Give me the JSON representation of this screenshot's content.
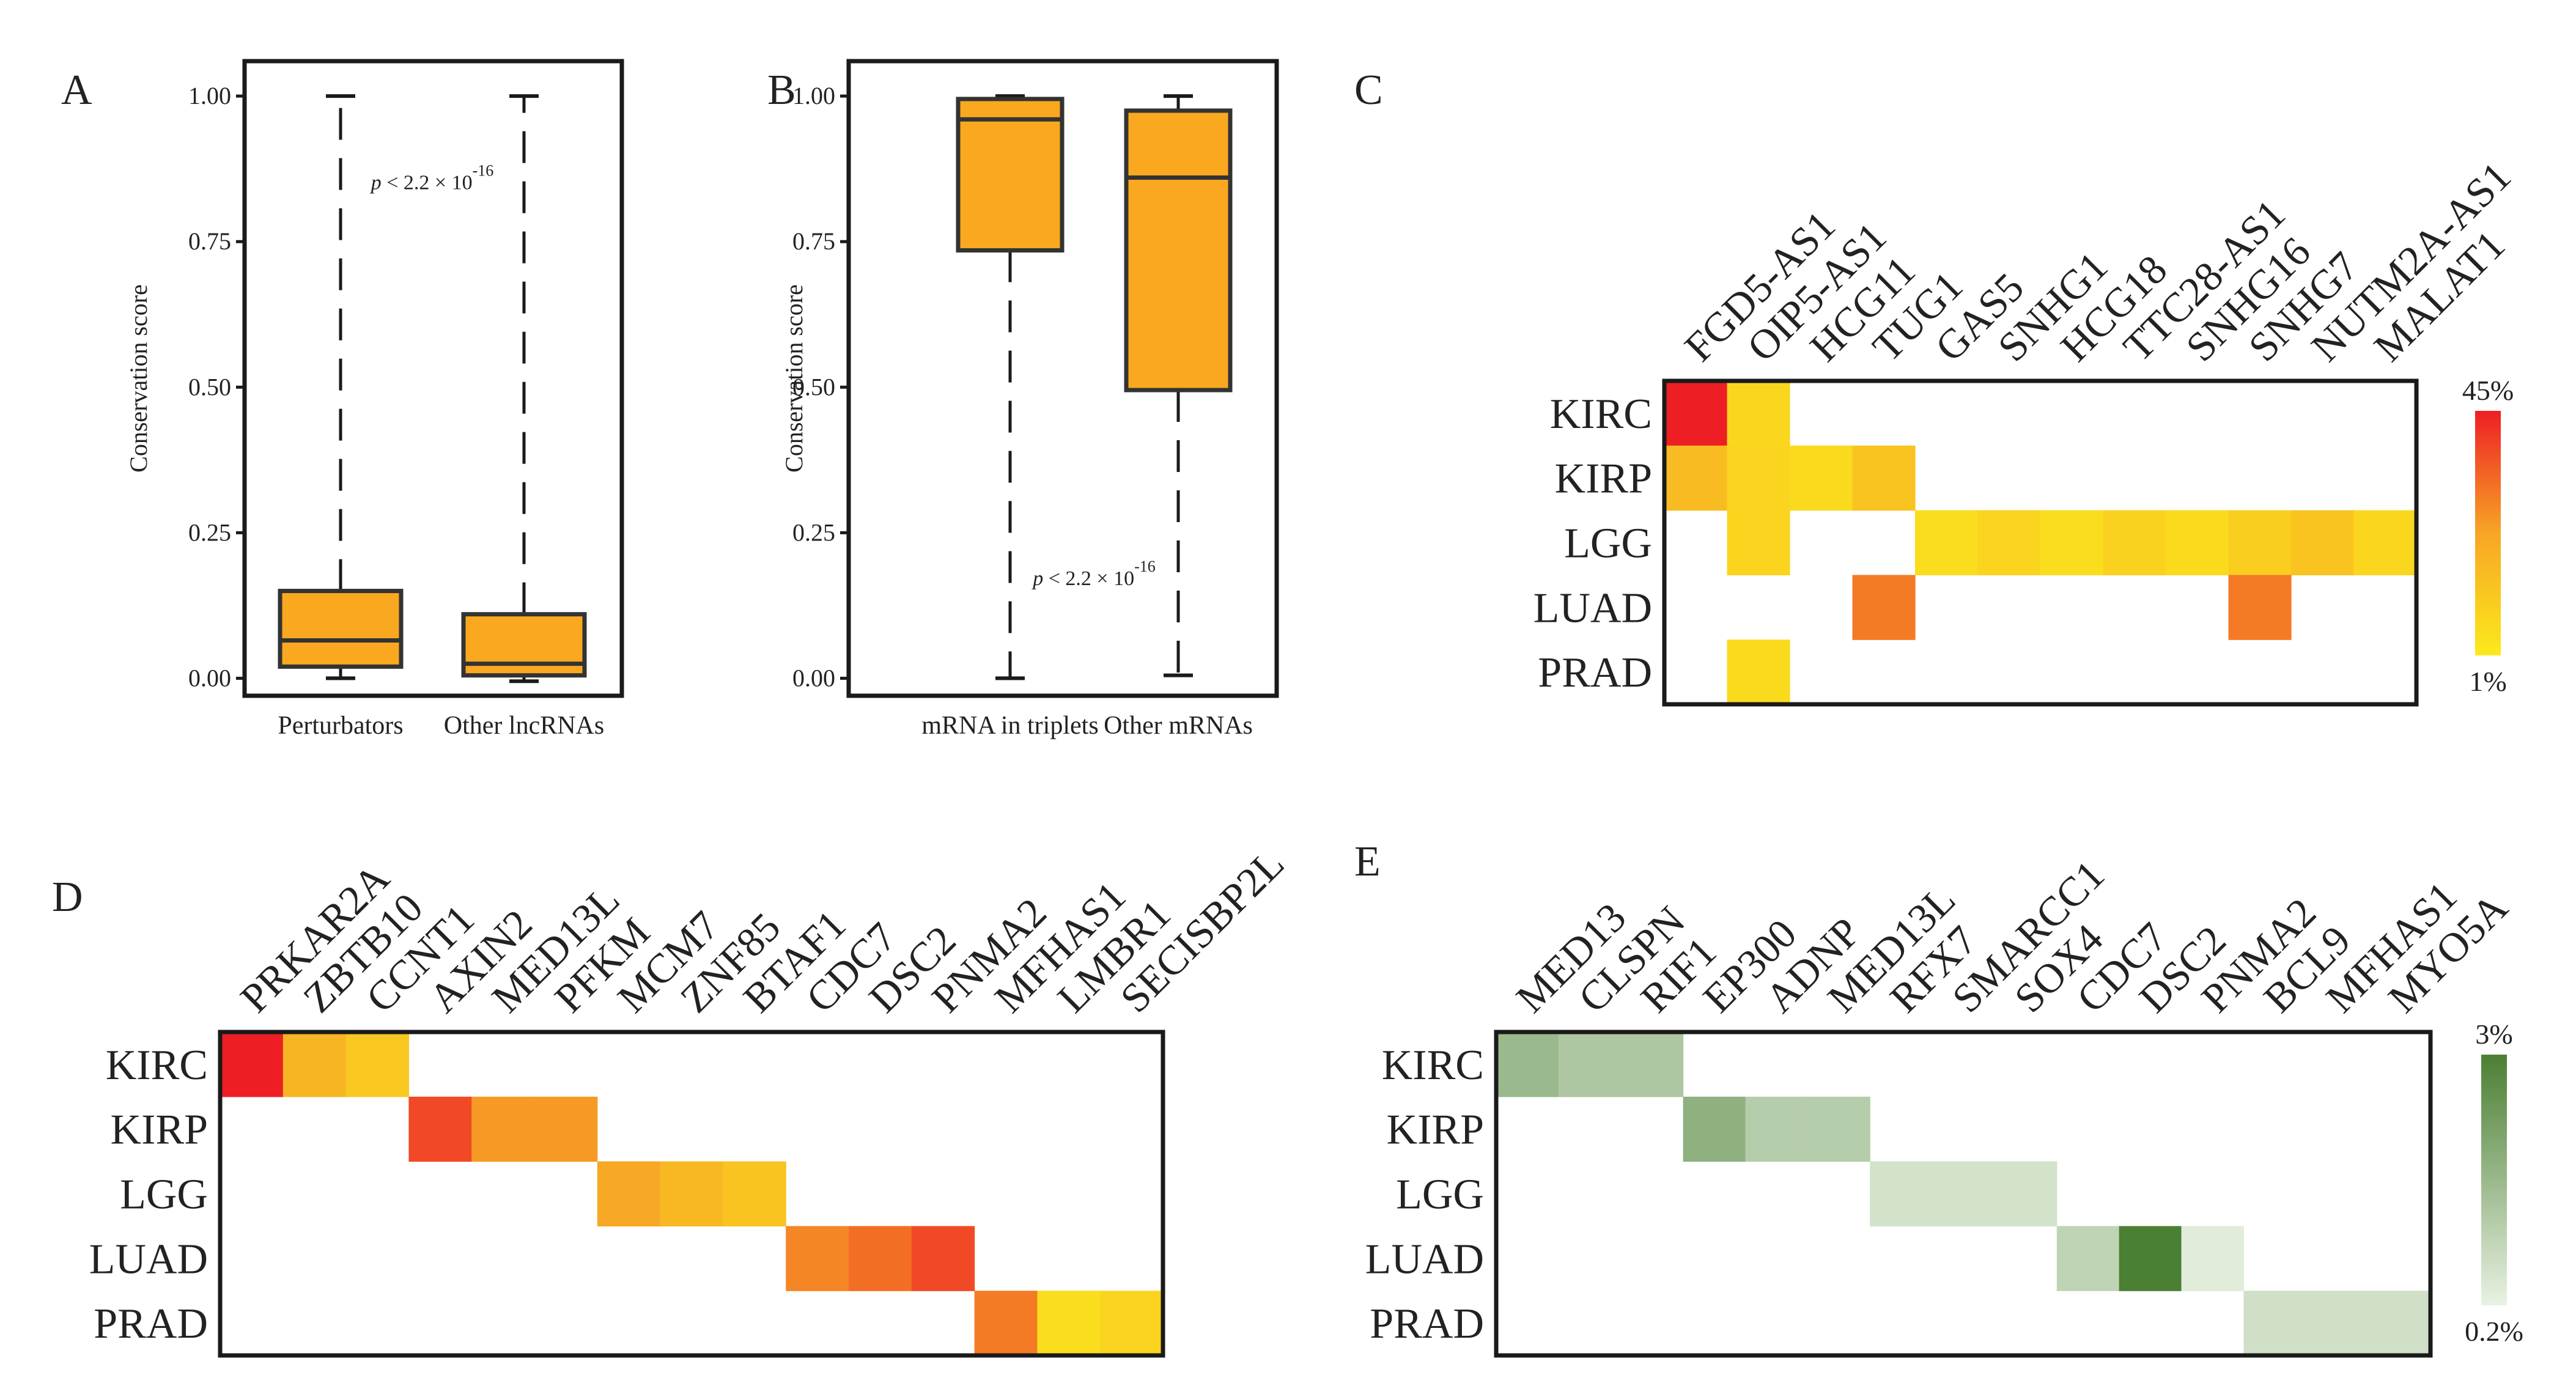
{
  "chart_data": [
    {
      "panel": "A",
      "type": "box",
      "ylabel": "Conservation score",
      "ylim": [
        -0.03,
        1.06
      ],
      "yticks": [
        "0.00",
        "0.25",
        "0.50",
        "0.75",
        "1.00"
      ],
      "yticks_values": [
        0,
        0.25,
        0.5,
        0.75,
        1.0
      ],
      "categories": [
        "Perturbators",
        "Other lncRNAs"
      ],
      "boxes": [
        {
          "whisker_low": 0.0,
          "q1": 0.02,
          "median": 0.065,
          "q3": 0.15,
          "whisker_high": 1.0
        },
        {
          "whisker_low": -0.005,
          "q1": 0.005,
          "median": 0.025,
          "q3": 0.11,
          "whisker_high": 1.0
        }
      ],
      "annotation": {
        "text": "p < 2.2 × 10",
        "exponent": "-16",
        "x_category": 0.5,
        "y_value": 0.84
      }
    },
    {
      "panel": "B",
      "type": "box",
      "ylabel": "Conservation score",
      "ylim": [
        -0.03,
        1.06
      ],
      "yticks": [
        "0.00",
        "0.25",
        "0.50",
        "0.75",
        "1.00"
      ],
      "yticks_values": [
        0,
        0.25,
        0.5,
        0.75,
        1.0
      ],
      "categories": [
        "mRNA in triplets",
        "Other mRNAs"
      ],
      "boxes": [
        {
          "whisker_low": 0.0,
          "q1": 0.735,
          "median": 0.96,
          "q3": 0.995,
          "whisker_high": 1.0
        },
        {
          "whisker_low": 0.005,
          "q1": 0.495,
          "median": 0.86,
          "q3": 0.975,
          "whisker_high": 1.0
        }
      ],
      "annotation": {
        "text": "p < 2.2 × 10",
        "exponent": "-16",
        "x_category": 0.5,
        "y_value": 0.16
      }
    },
    {
      "panel": "C",
      "type": "heatmap",
      "columns": [
        "FGD5-AS1",
        "OIP5-AS1",
        "HCG11",
        "TUG1",
        "GAS5",
        "SNHG1",
        "HCG18",
        "TTC28-AS1",
        "SNHG16",
        "SNHG7",
        "NUTM2A-AS1",
        "MALAT1"
      ],
      "rows": [
        "KIRC",
        "KIRP",
        "LGG",
        "LUAD",
        "PRAD"
      ],
      "values": [
        [
          45,
          7,
          null,
          null,
          null,
          null,
          null,
          null,
          null,
          null,
          null,
          null
        ],
        [
          16,
          8,
          6,
          13,
          null,
          null,
          null,
          null,
          null,
          null,
          null,
          null
        ],
        [
          null,
          8,
          null,
          null,
          5,
          8,
          5,
          9,
          6,
          10,
          13,
          7
        ],
        [
          null,
          null,
          null,
          30,
          null,
          null,
          null,
          null,
          null,
          30,
          null,
          null
        ],
        [
          null,
          6,
          null,
          null,
          null,
          null,
          null,
          null,
          null,
          null,
          null,
          null
        ]
      ],
      "legend": {
        "max_label": "45%",
        "min_label": "1%",
        "min": 1,
        "max": 45,
        "colors": [
          "#fbea1b",
          "#f7a525",
          "#ee1e25"
        ]
      }
    },
    {
      "panel": "D",
      "type": "heatmap",
      "columns": [
        "PRKAR2A",
        "ZBTB10",
        "CCNT1",
        "AXIN2",
        "MED13L",
        "PFKM",
        "MCM7",
        "ZNF85",
        "BTAF1",
        "CDC7",
        "DSC2",
        "PNMA2",
        "MFHAS1",
        "LMBR1",
        "SECISBP2L"
      ],
      "rows": [
        "KIRC",
        "KIRP",
        "LGG",
        "LUAD",
        "PRAD"
      ],
      "values": [
        [
          45,
          18,
          12,
          null,
          null,
          null,
          null,
          null,
          null,
          null,
          null,
          null,
          null,
          null,
          null
        ],
        [
          null,
          null,
          null,
          38,
          25,
          25,
          null,
          null,
          null,
          null,
          null,
          null,
          null,
          null,
          null
        ],
        [
          null,
          null,
          null,
          null,
          null,
          null,
          22,
          17,
          13,
          null,
          null,
          null,
          null,
          null,
          null
        ],
        [
          null,
          null,
          null,
          null,
          null,
          null,
          null,
          null,
          null,
          28,
          32,
          38,
          null,
          null,
          null
        ],
        [
          null,
          null,
          null,
          null,
          null,
          null,
          null,
          null,
          null,
          null,
          null,
          null,
          30,
          5,
          8
        ]
      ],
      "legend": {
        "min": 1,
        "max": 45,
        "colors": [
          "#fbea1b",
          "#f7a525",
          "#ee1e25"
        ]
      }
    },
    {
      "panel": "E",
      "type": "heatmap",
      "columns": [
        "MED13",
        "CLSPN",
        "RIF1",
        "EP300",
        "ADNP",
        "MED13L",
        "RFX7",
        "SMARCC1",
        "SOX4",
        "CDC7",
        "DSC2",
        "PNMA2",
        "BCL9",
        "MFHAS1",
        "MYO5A"
      ],
      "rows": [
        "KIRC",
        "KIRP",
        "LGG",
        "LUAD",
        "PRAD"
      ],
      "values": [
        [
          1.6,
          1.25,
          1.25,
          null,
          null,
          null,
          null,
          null,
          null,
          null,
          null,
          null,
          null,
          null,
          null
        ],
        [
          null,
          null,
          null,
          1.8,
          1.1,
          1.1,
          null,
          null,
          null,
          null,
          null,
          null,
          null,
          null,
          null
        ],
        [
          null,
          null,
          null,
          null,
          null,
          null,
          0.6,
          0.6,
          0.6,
          null,
          null,
          null,
          null,
          null,
          null
        ],
        [
          null,
          null,
          null,
          null,
          null,
          null,
          null,
          null,
          null,
          0.95,
          3.0,
          0.35,
          null,
          null,
          null
        ],
        [
          null,
          null,
          null,
          null,
          null,
          null,
          null,
          null,
          null,
          null,
          null,
          null,
          0.65,
          0.65,
          0.65
        ]
      ],
      "legend": {
        "max_label": "3%",
        "min_label": "0.2%",
        "min": 0.2,
        "max": 3,
        "colors": [
          "#e9f2e4",
          "#4b7f33"
        ]
      }
    }
  ]
}
